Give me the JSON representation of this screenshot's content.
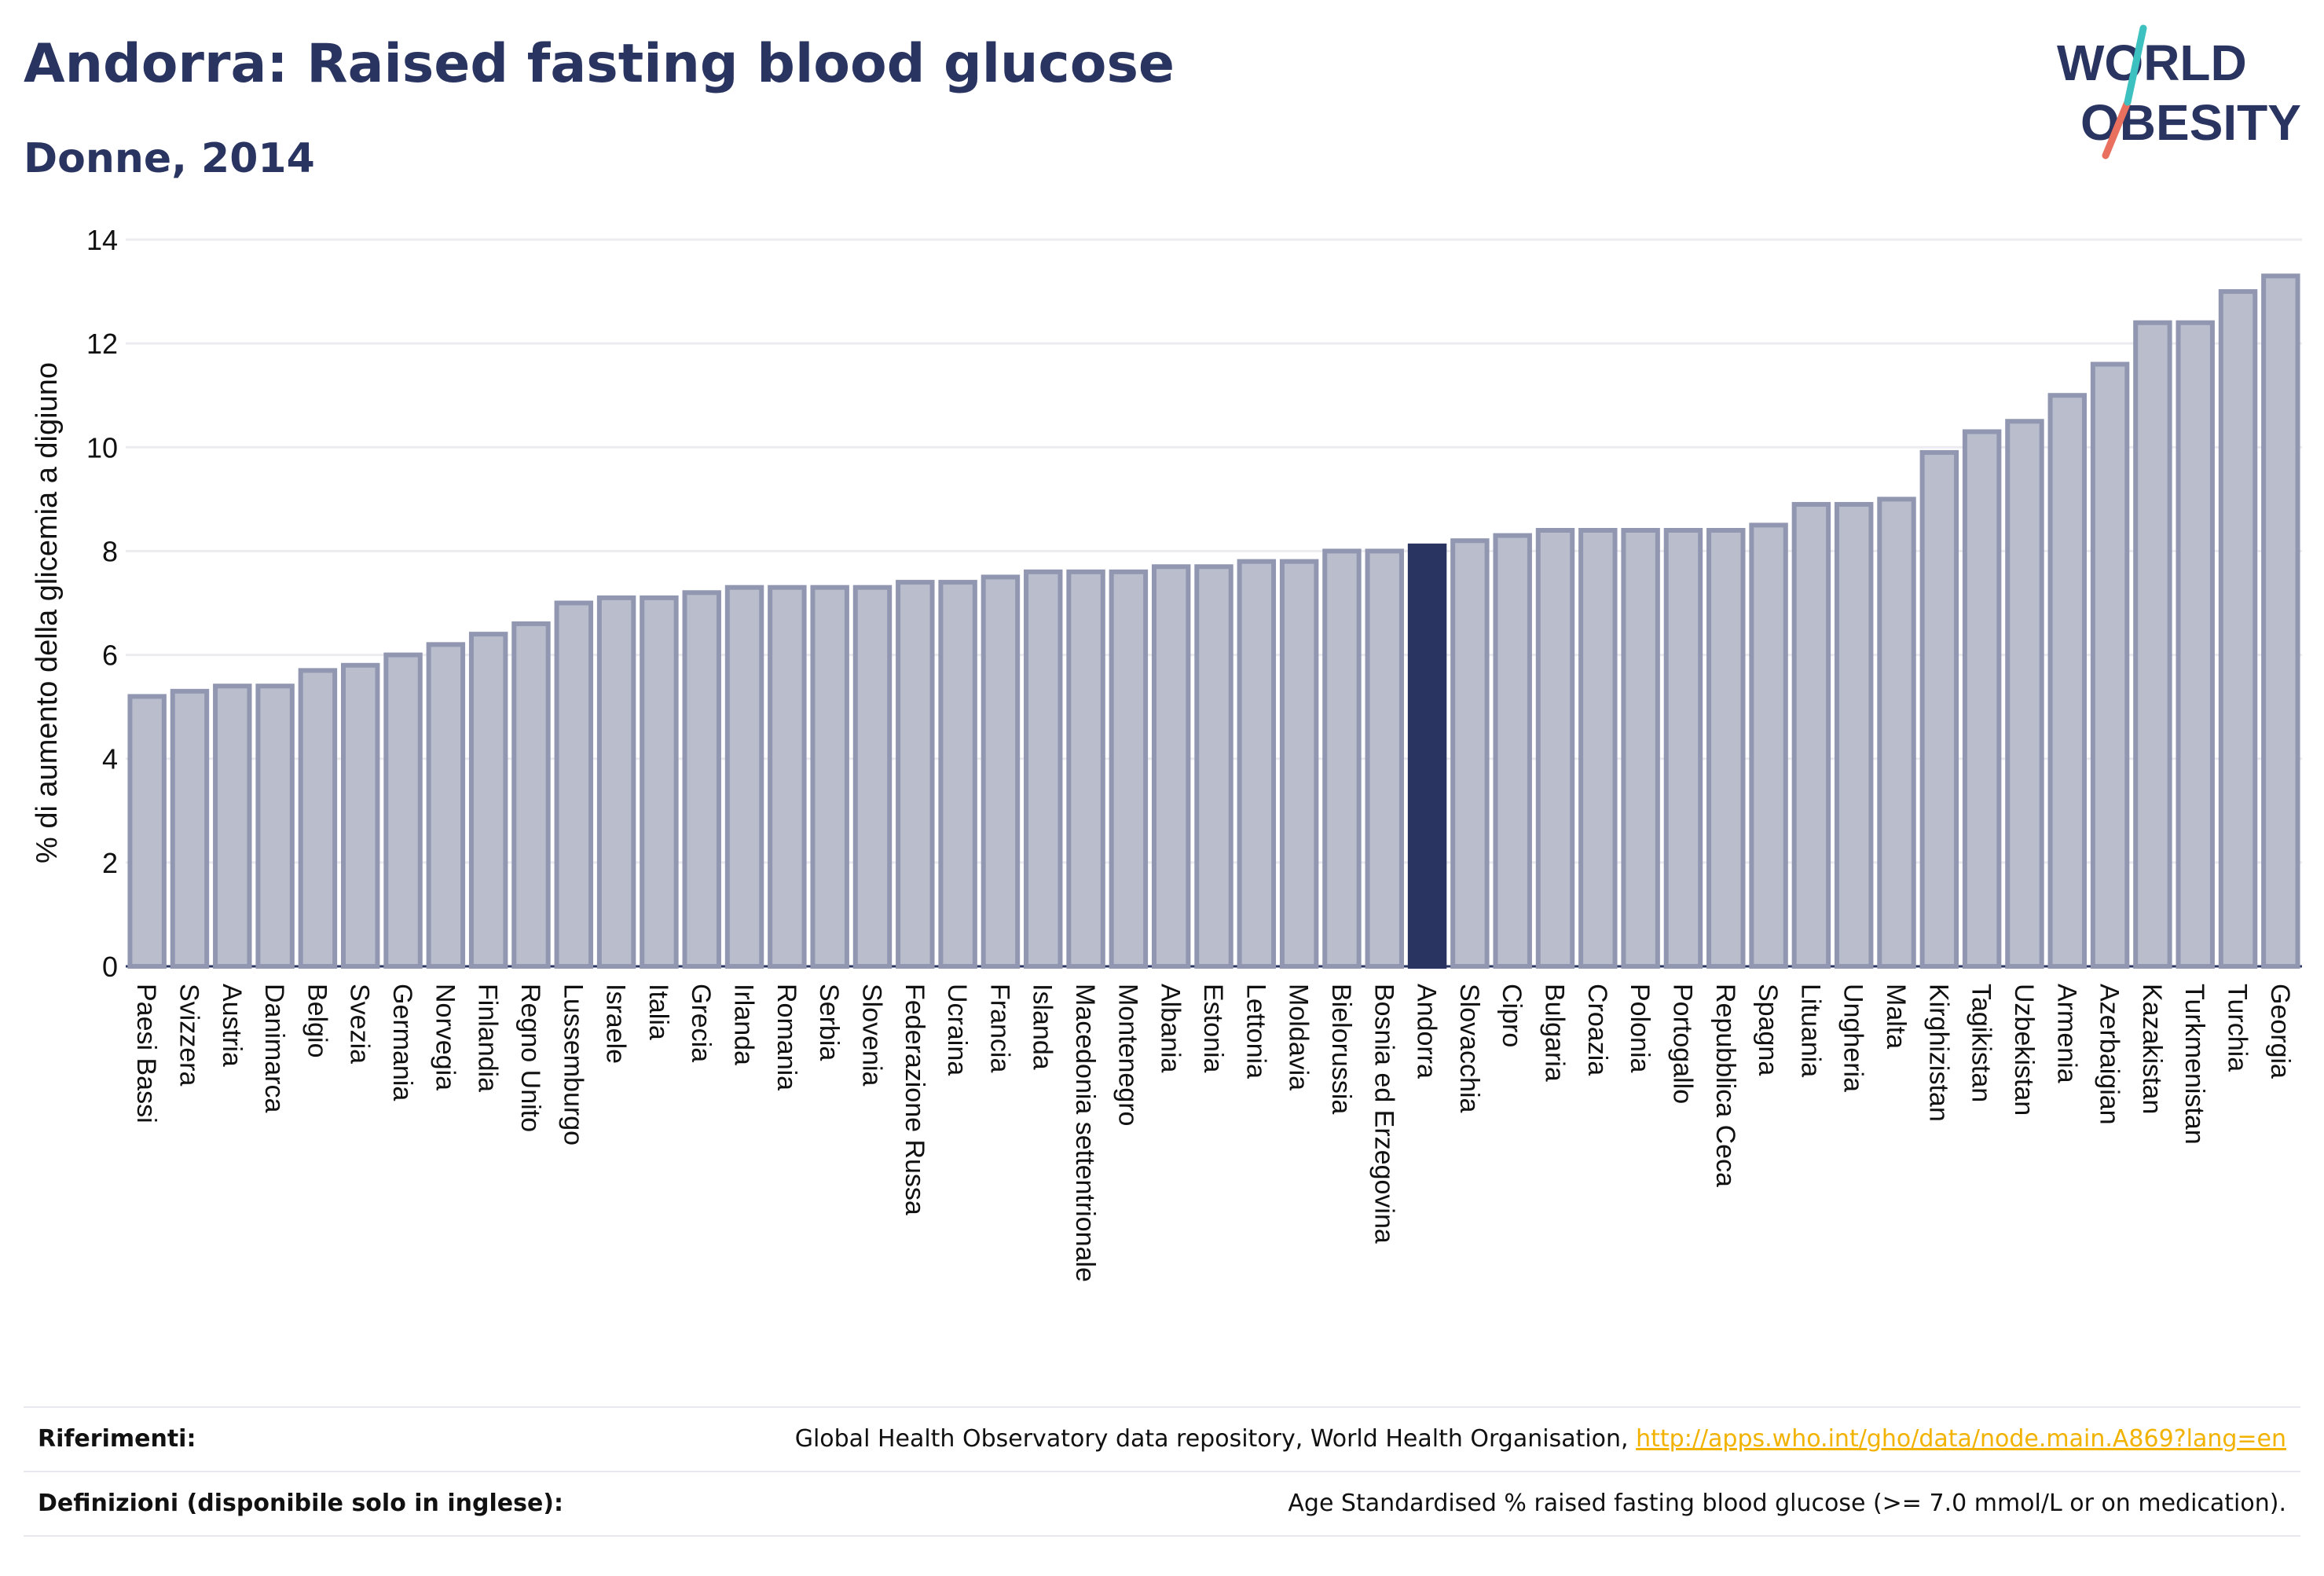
{
  "title": "Andorra: Raised fasting blood glucose",
  "subtitle": "Donne, 2014",
  "logo": {
    "line1": "WORLD",
    "line2": "OBESITY"
  },
  "colors": {
    "bar": "#b9bdcc",
    "bar_stroke": "#9297b1",
    "highlight": "#2a3460",
    "text": "#2a3460",
    "link": "#f2b200",
    "grid": "#ebebf0"
  },
  "chart_data": {
    "type": "bar",
    "ylabel": "% di aumento della glicemia a digiuno",
    "ylim": [
      0,
      14
    ],
    "yticks": [
      0,
      2,
      4,
      6,
      8,
      10,
      12,
      14
    ],
    "grid": true,
    "highlight": "Andorra",
    "categories": [
      "Paesi Bassi",
      "Svizzera",
      "Austria",
      "Danimarca",
      "Belgio",
      "Svezia",
      "Germania",
      "Norvegia",
      "Finlandia",
      "Regno Unito",
      "Lussemburgo",
      "Israele",
      "Italia",
      "Grecia",
      "Irlanda",
      "Romania",
      "Serbia",
      "Slovenia",
      "Federazione Russa",
      "Ucraina",
      "Francia",
      "Islanda",
      "Macedonia settentrionale",
      "Montenegro",
      "Albania",
      "Estonia",
      "Lettonia",
      "Moldavia",
      "Bielorussia",
      "Bosnia ed Erzegovina",
      "Andorra",
      "Slovacchia",
      "Cipro",
      "Bulgaria",
      "Croazia",
      "Polonia",
      "Portogallo",
      "Repubblica Ceca",
      "Spagna",
      "Lituania",
      "Ungheria",
      "Malta",
      "Kirghizistan",
      "Tagikistan",
      "Uzbekistan",
      "Armenia",
      "Azerbaigian",
      "Kazakistan",
      "Turkmenistan",
      "Turchia",
      "Georgia"
    ],
    "values": [
      5.2,
      5.3,
      5.4,
      5.4,
      5.7,
      5.8,
      6.0,
      6.2,
      6.4,
      6.6,
      7.0,
      7.1,
      7.1,
      7.2,
      7.3,
      7.3,
      7.3,
      7.3,
      7.4,
      7.4,
      7.5,
      7.6,
      7.6,
      7.6,
      7.7,
      7.7,
      7.8,
      7.8,
      8.0,
      8.0,
      8.1,
      8.2,
      8.3,
      8.4,
      8.4,
      8.4,
      8.4,
      8.4,
      8.5,
      8.9,
      8.9,
      9.0,
      9.9,
      10.3,
      10.5,
      11.0,
      11.6,
      12.4,
      12.4,
      13.0,
      13.3
    ]
  },
  "footer": {
    "references_label": "Riferimenti:",
    "references_text": "Global Health Observatory data repository, World Health Organisation,",
    "references_link": "http://apps.who.int/gho/data/node.main.A869?lang=en",
    "definitions_label": "Definizioni (disponibile solo in inglese):",
    "definitions_text": "Age Standardised % raised fasting blood glucose (>= 7.0 mmol/L or on medication)."
  }
}
